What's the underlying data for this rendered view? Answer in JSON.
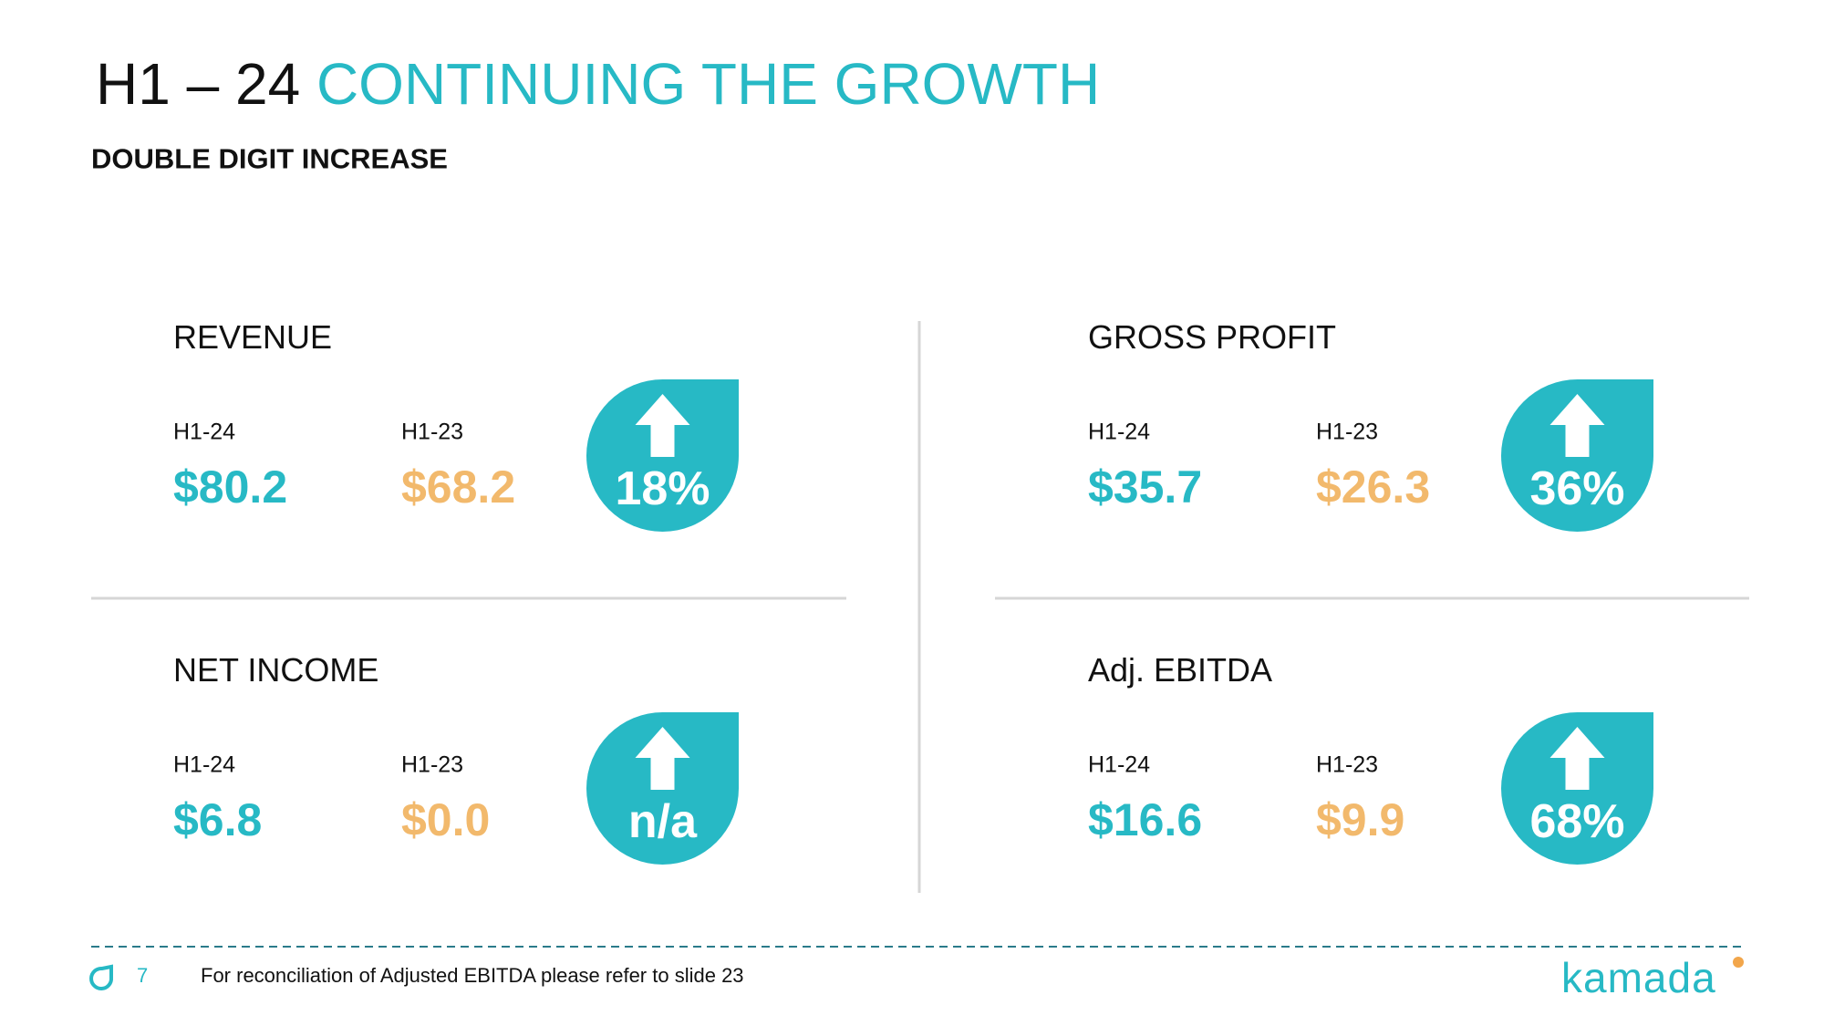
{
  "title": {
    "prefix": "H1 – 24",
    "highlight": "CONTINUING THE GROWTH"
  },
  "subtitle": "DOUBLE DIGIT INCREASE",
  "metrics": [
    {
      "name": "REVENUE",
      "current_label": "H1-24",
      "current": "$80.2",
      "prior_label": "H1-23",
      "prior": "$68.2",
      "change": "18%"
    },
    {
      "name": "GROSS PROFIT",
      "current_label": "H1-24",
      "current": "$35.7",
      "prior_label": "H1-23",
      "prior": "$26.3",
      "change": "36%"
    },
    {
      "name": "NET INCOME",
      "current_label": "H1-24",
      "current": "$6.8",
      "prior_label": "H1-23",
      "prior": "$0.0",
      "change": "n/a"
    },
    {
      "name": "Adj. EBITDA",
      "current_label": "H1-24",
      "current": "$16.6",
      "prior_label": "H1-23",
      "prior": "$9.9",
      "change": "68%"
    }
  ],
  "footer": {
    "page": "7",
    "note": "For reconciliation of Adjusted EBITDA please refer to slide 23",
    "logo": "kamada"
  }
}
